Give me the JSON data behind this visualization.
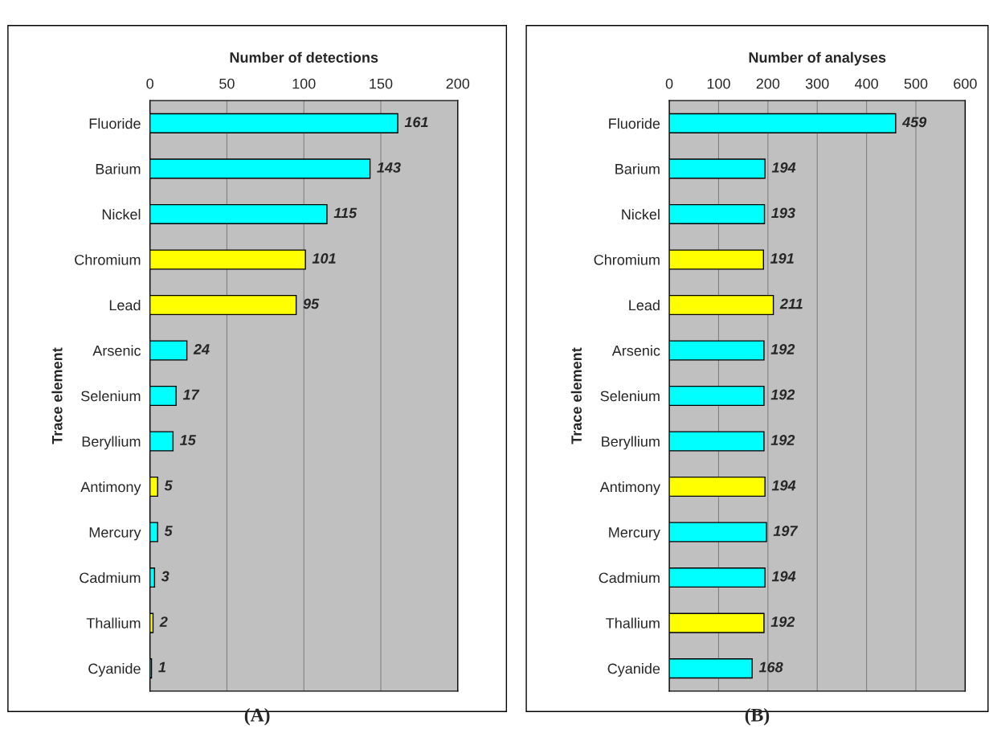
{
  "chart_data": [
    {
      "type": "bar",
      "orientation": "horizontal",
      "xlabel": "Number of detections",
      "ylabel": "Trace element",
      "categories": [
        "Fluoride",
        "Barium",
        "Nickel",
        "Chromium",
        "Lead",
        "Arsenic",
        "Selenium",
        "Beryllium",
        "Antimony",
        "Mercury",
        "Cadmium",
        "Thallium",
        "Cyanide"
      ],
      "values": [
        161,
        143,
        115,
        101,
        95,
        24,
        17,
        15,
        5,
        5,
        3,
        2,
        1
      ],
      "colors": [
        "#00ffff",
        "#00ffff",
        "#00ffff",
        "#ffff00",
        "#ffff00",
        "#00ffff",
        "#00ffff",
        "#00ffff",
        "#ffff00",
        "#00ffff",
        "#00ffff",
        "#ffff00",
        "#00ffff"
      ],
      "xlim": [
        0,
        200
      ],
      "xticks": [
        0,
        50,
        100,
        150,
        200
      ],
      "grid": "x",
      "data_labels": true,
      "legend": false,
      "annotations": [
        "(A)"
      ]
    },
    {
      "type": "bar",
      "orientation": "horizontal",
      "xlabel": "Number of analyses",
      "ylabel": "Trace element",
      "categories": [
        "Fluoride",
        "Barium",
        "Nickel",
        "Chromium",
        "Lead",
        "Arsenic",
        "Selenium",
        "Beryllium",
        "Antimony",
        "Mercury",
        "Cadmium",
        "Thallium",
        "Cyanide"
      ],
      "values": [
        459,
        194,
        193,
        191,
        211,
        192,
        192,
        192,
        194,
        197,
        194,
        192,
        168
      ],
      "colors": [
        "#00ffff",
        "#00ffff",
        "#00ffff",
        "#ffff00",
        "#ffff00",
        "#00ffff",
        "#00ffff",
        "#00ffff",
        "#ffff00",
        "#00ffff",
        "#00ffff",
        "#ffff00",
        "#00ffff"
      ],
      "xlim": [
        0,
        600
      ],
      "xticks": [
        0,
        100,
        200,
        300,
        400,
        500,
        600
      ],
      "grid": "x",
      "data_labels": true,
      "legend": false,
      "annotations": [
        "(B)"
      ]
    }
  ]
}
